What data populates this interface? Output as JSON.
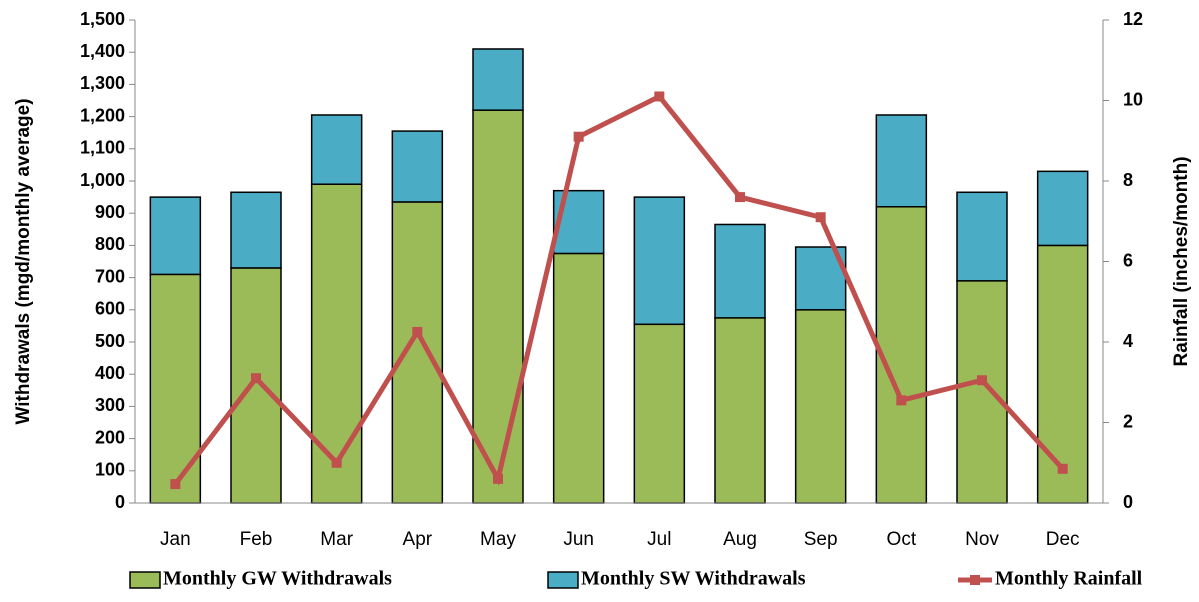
{
  "chart_data": {
    "type": "bar",
    "stacked": true,
    "categories": [
      "Jan",
      "Feb",
      "Mar",
      "Apr",
      "May",
      "Jun",
      "Jul",
      "Aug",
      "Sep",
      "Oct",
      "Nov",
      "Dec"
    ],
    "series": [
      {
        "name": "Monthly GW Withdrawals",
        "type": "bar",
        "color": "#9bbb59",
        "values": [
          710,
          730,
          990,
          935,
          1220,
          775,
          555,
          575,
          600,
          920,
          690,
          800
        ]
      },
      {
        "name": "Monthly SW Withdrawals",
        "type": "bar",
        "color": "#4bacc6",
        "values": [
          240,
          235,
          215,
          220,
          190,
          195,
          395,
          290,
          195,
          285,
          275,
          230
        ]
      },
      {
        "name": "Monthly Rainfall",
        "type": "line",
        "axis": "y2",
        "color": "#c0504d",
        "values": [
          0.47,
          3.1,
          1.0,
          4.25,
          0.6,
          9.1,
          10.1,
          7.6,
          7.1,
          2.55,
          3.05,
          0.85
        ]
      }
    ],
    "ylabel": "Withdrawals (mgd/monthly average)",
    "y2label": "Rainfall (inches/month)",
    "ylim": [
      0,
      1500
    ],
    "yticks": [
      0,
      100,
      200,
      300,
      400,
      500,
      600,
      700,
      800,
      900,
      {
        "value": 1000,
        "label": "1,000"
      },
      {
        "value": 1100,
        "label": "1,100"
      },
      {
        "value": 1200,
        "label": "1,200"
      },
      {
        "value": 1300,
        "label": "1,300"
      },
      {
        "value": 1400,
        "label": "1,400"
      },
      {
        "value": 1500,
        "label": "1,500"
      }
    ],
    "y2lim": [
      0,
      12
    ],
    "y2ticks": [
      0,
      2,
      4,
      6,
      8,
      10,
      12
    ],
    "legend": "bottom"
  }
}
